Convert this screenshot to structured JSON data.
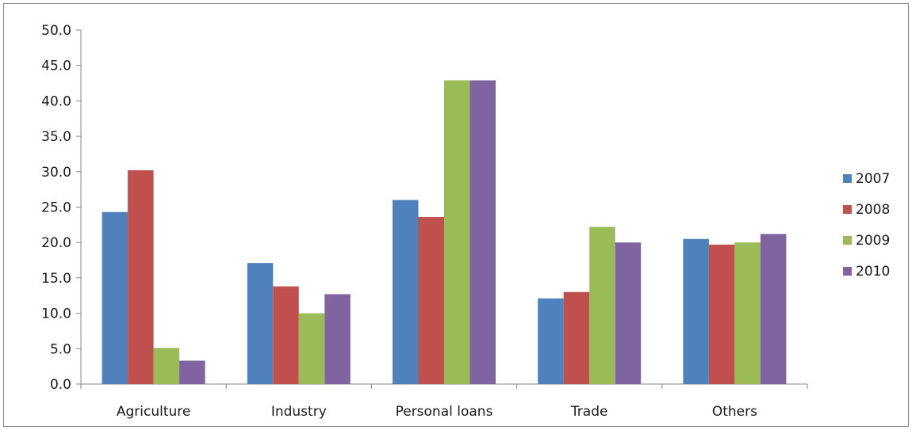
{
  "chart_data": {
    "type": "bar",
    "categories": [
      "Agriculture",
      "Industry",
      "Personal loans",
      "Trade",
      "Others"
    ],
    "series": [
      {
        "name": "2007",
        "color": "#4f81bd",
        "values": [
          24.3,
          17.1,
          26.0,
          12.1,
          20.5
        ]
      },
      {
        "name": "2008",
        "color": "#c0504d",
        "values": [
          30.2,
          13.8,
          23.6,
          13.0,
          19.7
        ]
      },
      {
        "name": "2009",
        "color": "#9bbb59",
        "values": [
          5.1,
          10.0,
          42.9,
          22.2,
          20.0
        ]
      },
      {
        "name": "2010",
        "color": "#8064a2",
        "values": [
          3.3,
          12.7,
          42.9,
          20.0,
          21.2
        ]
      }
    ],
    "ylim": [
      0,
      50
    ],
    "ytick_step": 5,
    "ytick_labels": [
      "0.0",
      "5.0",
      "10.0",
      "15.0",
      "20.0",
      "25.0",
      "30.0",
      "35.0",
      "40.0",
      "45.0",
      "50.0"
    ],
    "grid": false,
    "legend_position": "right",
    "title": "",
    "xlabel": "",
    "ylabel": ""
  }
}
